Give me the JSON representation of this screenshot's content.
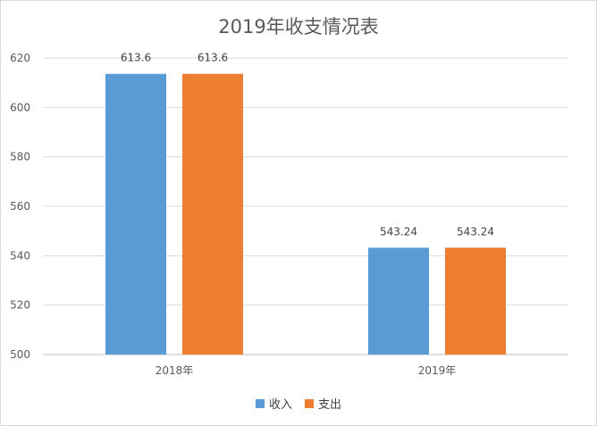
{
  "chart_data": {
    "type": "bar",
    "title": "2019年收支情况表",
    "categories": [
      "2018年",
      "2019年"
    ],
    "series": [
      {
        "name": "收入",
        "values": [
          613.6,
          543.24
        ],
        "color": "#5b9bd5"
      },
      {
        "name": "支出",
        "values": [
          613.6,
          543.24
        ],
        "color": "#ed7d31"
      }
    ],
    "data_labels": [
      [
        "613.6",
        "543.24"
      ],
      [
        "613.6",
        "543.24"
      ]
    ],
    "ylim": [
      500,
      620
    ],
    "yticks": [
      500,
      520,
      540,
      560,
      580,
      600,
      620
    ],
    "grid": true,
    "legend_position": "bottom",
    "xlabel": "",
    "ylabel": ""
  }
}
